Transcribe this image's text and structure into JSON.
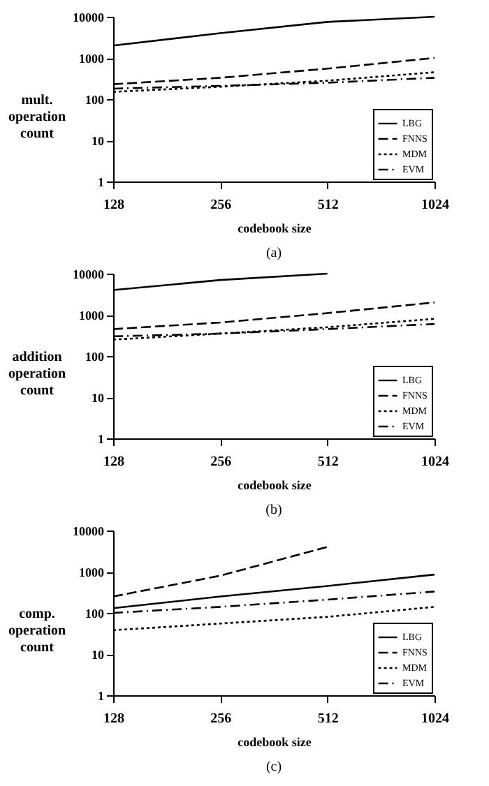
{
  "chart_data": [
    {
      "type": "line",
      "xlabel": "codebook size",
      "ylabel": "mult. operation count",
      "annotations": [
        "(a)"
      ],
      "categories": [
        "128",
        "256",
        "512",
        "1024"
      ],
      "log": "y",
      "ylim": [
        1,
        10000
      ],
      "yticks": [
        1,
        10,
        100,
        1000,
        10000
      ],
      "grid": false,
      "legend": "bottom right",
      "marker": "none",
      "series": [
        {
          "name": "LBG",
          "color": "#000000",
          "line_style": "solid",
          "values": [
            2000,
            4000,
            7500,
            10000
          ]
        },
        {
          "name": "FNNS",
          "color": "#000000",
          "line_style": "dashed",
          "values": [
            230,
            330,
            550,
            1000
          ]
        },
        {
          "name": "MDM",
          "color": "#000000",
          "line_style": "dotted",
          "values": [
            150,
            200,
            280,
            450
          ]
        },
        {
          "name": "EVM",
          "color": "#000000",
          "line_style": "dashdot",
          "values": [
            180,
            210,
            250,
            330
          ]
        }
      ]
    },
    {
      "type": "line",
      "xlabel": "codebook size",
      "ylabel": "addition operation count",
      "annotations": [
        "(b)"
      ],
      "categories": [
        "128",
        "256",
        "512",
        "1024"
      ],
      "log": "y",
      "ylim": [
        1,
        10000
      ],
      "yticks": [
        1,
        10,
        100,
        1000,
        10000
      ],
      "grid": false,
      "legend": "bottom right",
      "marker": "none",
      "series": [
        {
          "name": "LBG",
          "color": "#000000",
          "line_style": "solid",
          "values": [
            4000,
            7000,
            10000,
            null
          ]
        },
        {
          "name": "FNNS",
          "color": "#000000",
          "line_style": "dashed",
          "values": [
            450,
            650,
            1100,
            2000
          ]
        },
        {
          "name": "MDM",
          "color": "#000000",
          "line_style": "dotted",
          "values": [
            250,
            350,
            500,
            800
          ]
        },
        {
          "name": "EVM",
          "color": "#000000",
          "line_style": "dashdot",
          "values": [
            300,
            350,
            450,
            600
          ]
        }
      ]
    },
    {
      "type": "line",
      "xlabel": "codebook size",
      "ylabel": "comp. operation count",
      "annotations": [
        "(c)"
      ],
      "categories": [
        "128",
        "256",
        "512",
        "1024"
      ],
      "log": "y",
      "ylim": [
        1,
        10000
      ],
      "yticks": [
        1,
        10,
        100,
        1000,
        10000
      ],
      "grid": false,
      "legend": "bottom right",
      "marker": "none",
      "series": [
        {
          "name": "LBG",
          "color": "#000000",
          "line_style": "solid",
          "values": [
            130,
            250,
            450,
            850
          ]
        },
        {
          "name": "FNNS",
          "color": "#000000",
          "line_style": "dashed",
          "values": [
            250,
            800,
            4000,
            null
          ]
        },
        {
          "name": "MDM",
          "color": "#000000",
          "line_style": "dotted",
          "values": [
            38,
            55,
            80,
            140
          ]
        },
        {
          "name": "EVM",
          "color": "#000000",
          "line_style": "dashdot",
          "values": [
            100,
            140,
            210,
            330
          ]
        }
      ]
    }
  ]
}
